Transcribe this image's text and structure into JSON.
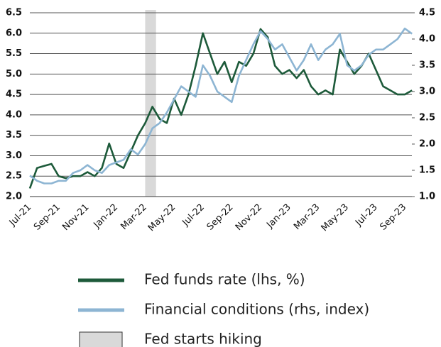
{
  "chart_data": {
    "type": "line",
    "categories": [
      "Jul-21",
      null,
      null,
      null,
      "Sep-21",
      null,
      null,
      null,
      "Nov-21",
      null,
      null,
      null,
      "Jan-22",
      null,
      null,
      null,
      "Mar-22",
      null,
      null,
      null,
      "May-22",
      null,
      null,
      null,
      "Jul-22",
      null,
      null,
      null,
      "Sep-22",
      null,
      null,
      null,
      "Nov-22",
      null,
      null,
      null,
      "Jan-23",
      null,
      null,
      null,
      "Mar-23",
      null,
      null,
      null,
      "May-23",
      null,
      null,
      null,
      "Jul-23",
      null,
      null,
      null,
      "Sep-23",
      null
    ],
    "series": [
      {
        "name": "Fed funds rate (lhs, %)",
        "color": "#1d5a3a",
        "axis": "y",
        "values": [
          2.2,
          2.7,
          2.75,
          2.8,
          2.5,
          2.45,
          2.5,
          2.5,
          2.6,
          2.5,
          2.7,
          3.3,
          2.8,
          2.7,
          3.1,
          3.5,
          3.8,
          4.2,
          3.9,
          3.8,
          4.4,
          4.0,
          4.5,
          5.2,
          6.0,
          5.5,
          5.0,
          5.3,
          4.8,
          5.3,
          5.2,
          5.5,
          6.1,
          5.9,
          5.2,
          5.0,
          5.1,
          4.9,
          5.1,
          4.7,
          4.5,
          4.6,
          4.5,
          5.6,
          5.3,
          5.0,
          5.2,
          5.5,
          5.1,
          4.7,
          4.6,
          4.5,
          4.5,
          4.6
        ]
      },
      {
        "name": "Financial conditions (rhs, index)",
        "color": "#8db5d3",
        "axis": "y2",
        "values": [
          1.4,
          1.3,
          1.25,
          1.25,
          1.3,
          1.3,
          1.45,
          1.5,
          1.6,
          1.5,
          1.45,
          1.6,
          1.65,
          1.7,
          1.9,
          1.8,
          2.0,
          2.3,
          2.4,
          2.6,
          2.85,
          3.1,
          3.0,
          2.9,
          3.5,
          3.3,
          3.0,
          2.9,
          2.8,
          3.3,
          3.6,
          3.9,
          4.15,
          4.0,
          3.8,
          3.9,
          3.65,
          3.4,
          3.6,
          3.9,
          3.6,
          3.8,
          3.9,
          4.1,
          3.5,
          3.4,
          3.5,
          3.7,
          3.8,
          3.8,
          3.9,
          4.0,
          4.2,
          4.1
        ]
      }
    ],
    "highlight": {
      "name": "Fed starts hiking",
      "start": 16,
      "end": 17.5,
      "color": "#d9d9d9"
    },
    "ylim": [
      2.0,
      6.5
    ],
    "yticks": [
      {
        "value": 2.0,
        "label": "2.0"
      },
      2.5,
      {
        "value": 3.0,
        "label": "3.0"
      },
      3.5,
      {
        "value": 4.0,
        "label": "4.0"
      },
      4.5,
      {
        "value": 5.0,
        "label": "5.0"
      },
      5.5,
      {
        "value": 6.0,
        "label": "6.0"
      },
      6.5
    ],
    "y2lim": [
      1.0,
      4.5
    ],
    "y2ticks": [
      {
        "value": 1.0,
        "label": "1.0"
      },
      1.5,
      {
        "value": 2.0,
        "label": "2.0"
      },
      2.5,
      {
        "value": 3.0,
        "label": "3.0"
      },
      3.5,
      {
        "value": 4.0,
        "label": "4.0"
      },
      4.5
    ],
    "grid": true
  }
}
